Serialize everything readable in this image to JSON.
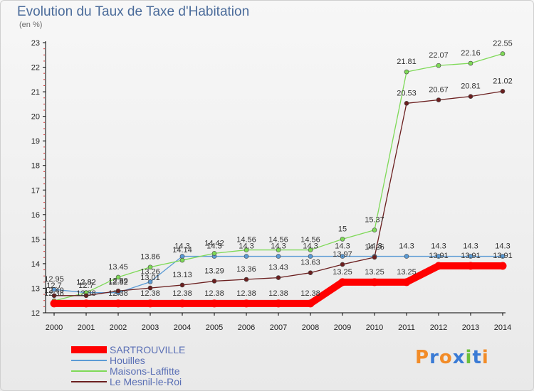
{
  "header": {
    "title": "Evolution du Taux de Taxe d'Habitation",
    "unit": "(en %)"
  },
  "brand": {
    "text": "Proxiti"
  },
  "chart_data": {
    "type": "line",
    "title": "Evolution du Taux de Taxe d'Habitation",
    "ylabel": "(en %)",
    "xlabel": "",
    "x": [
      2000,
      2001,
      2002,
      2003,
      2004,
      2005,
      2006,
      2007,
      2008,
      2009,
      2010,
      2011,
      2012,
      2013,
      2014
    ],
    "ylim": [
      12,
      23
    ],
    "yticks": [
      12,
      13,
      14,
      15,
      16,
      17,
      18,
      19,
      20,
      21,
      22,
      23
    ],
    "grid": false,
    "legend_position": "bottom-left",
    "series": [
      {
        "name": "SARTROUVILLE",
        "color": "#ff0000",
        "values": [
          12.38,
          12.38,
          12.38,
          12.38,
          12.38,
          12.38,
          12.38,
          12.38,
          12.38,
          13.25,
          13.25,
          13.25,
          13.91,
          13.91,
          13.91
        ],
        "labels": [
          "12.38",
          "12.38",
          "12.38",
          "12.38",
          "12.38",
          "12.38",
          "12.38",
          "12.38",
          "12.38",
          "13.25",
          "13.25",
          "13.25",
          "13.91",
          "13.91",
          "13.91"
        ]
      },
      {
        "name": "Houilles",
        "color": "#5b9bd5",
        "values": [
          12.95,
          12.82,
          12.82,
          13.26,
          14.3,
          14.3,
          14.3,
          14.3,
          14.3,
          14.3,
          14.3,
          14.3,
          14.3,
          14.3,
          14.3
        ],
        "labels": [
          "12.95",
          "12.82",
          "12.82",
          "13.26",
          "14.3",
          "14.3",
          "14.3",
          "14.3",
          "14.3",
          "14.3",
          "14.3",
          "14.3",
          "14.3",
          "14.3",
          "14.3"
        ]
      },
      {
        "name": "Maisons-Laffitte",
        "color": "#7ed957",
        "values": [
          12.49,
          12.82,
          13.45,
          13.86,
          14.14,
          14.42,
          14.56,
          14.56,
          14.56,
          15,
          15.37,
          21.81,
          22.07,
          22.16,
          22.55
        ],
        "labels": [
          "12.49",
          "12.82",
          "13.45",
          "13.86",
          "14.14",
          "14.42",
          "14.56",
          "14.56",
          "14.56",
          "15",
          "15.37",
          "21.81",
          "22.07",
          "22.16",
          "22.55"
        ]
      },
      {
        "name": "Le Mesnil-le-Roi",
        "color": "#6b1f1f",
        "values": [
          12.7,
          12.7,
          12.89,
          13.01,
          13.13,
          13.29,
          13.36,
          13.43,
          13.63,
          13.97,
          14.26,
          20.53,
          20.67,
          20.81,
          21.02
        ],
        "labels": [
          "12.7",
          "12.7",
          "12.89",
          "13.01",
          "13.13",
          "13.29",
          "13.36",
          "13.43",
          "13.63",
          "13.97",
          "14.26",
          "20.53",
          "20.67",
          "20.81",
          "21.02"
        ]
      }
    ]
  }
}
